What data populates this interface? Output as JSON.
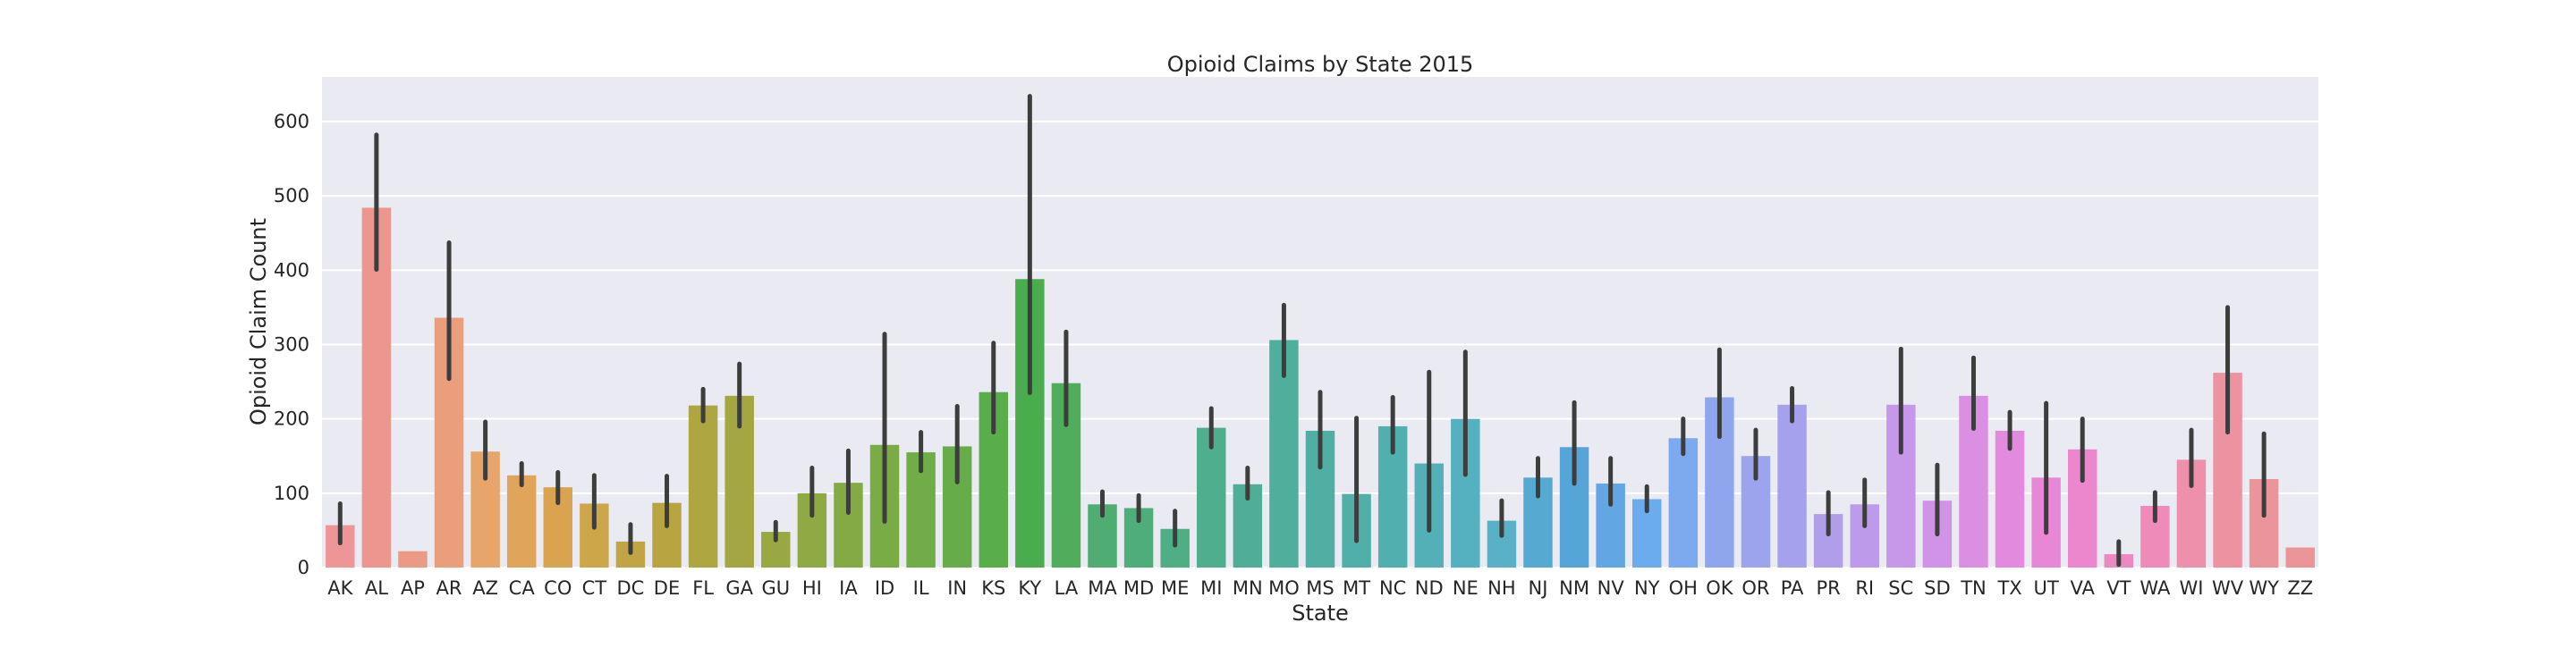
{
  "chart_data": {
    "type": "bar",
    "title": "Opioid Claims by State 2015",
    "xlabel": "State",
    "ylabel": "Opioid Claim Count",
    "ylim": [
      0,
      660
    ],
    "yticks": [
      0,
      100,
      200,
      300,
      400,
      500,
      600
    ],
    "grid": true,
    "legend": "none",
    "categories": [
      "AK",
      "AL",
      "AP",
      "AR",
      "AZ",
      "CA",
      "CO",
      "CT",
      "DC",
      "DE",
      "FL",
      "GA",
      "GU",
      "HI",
      "IA",
      "ID",
      "IL",
      "IN",
      "KS",
      "KY",
      "LA",
      "MA",
      "MD",
      "ME",
      "MI",
      "MN",
      "MO",
      "MS",
      "MT",
      "NC",
      "ND",
      "NE",
      "NH",
      "NJ",
      "NM",
      "NV",
      "NY",
      "OH",
      "OK",
      "OR",
      "PA",
      "PR",
      "RI",
      "SC",
      "SD",
      "TN",
      "TX",
      "UT",
      "VA",
      "VT",
      "WA",
      "WI",
      "WV",
      "WY",
      "ZZ"
    ],
    "values": [
      57,
      484,
      22,
      336,
      156,
      124,
      108,
      86,
      35,
      87,
      218,
      231,
      48,
      100,
      114,
      165,
      155,
      163,
      236,
      388,
      248,
      85,
      80,
      52,
      188,
      112,
      306,
      184,
      99,
      190,
      140,
      200,
      63,
      121,
      162,
      113,
      92,
      174,
      229,
      150,
      219,
      72,
      85,
      219,
      90,
      231,
      184,
      121,
      159,
      18,
      83,
      145,
      262,
      119,
      27
    ],
    "error_low": [
      33,
      401,
      22,
      254,
      120,
      111,
      87,
      54,
      20,
      56,
      197,
      190,
      37,
      70,
      74,
      62,
      130,
      115,
      182,
      235,
      192,
      70,
      63,
      30,
      162,
      93,
      258,
      135,
      36,
      155,
      50,
      125,
      43,
      96,
      113,
      85,
      76,
      153,
      176,
      120,
      197,
      45,
      56,
      155,
      45,
      187,
      160,
      47,
      117,
      4,
      63,
      110,
      182,
      70,
      27
    ],
    "error_high": [
      86,
      582,
      22,
      437,
      196,
      140,
      128,
      124,
      58,
      123,
      240,
      274,
      61,
      134,
      157,
      314,
      182,
      217,
      302,
      634,
      317,
      102,
      97,
      76,
      214,
      134,
      353,
      236,
      201,
      229,
      263,
      290,
      90,
      147,
      222,
      147,
      109,
      200,
      293,
      185,
      241,
      101,
      118,
      294,
      138,
      282,
      209,
      221,
      200,
      35,
      101,
      185,
      350,
      180,
      27
    ]
  }
}
